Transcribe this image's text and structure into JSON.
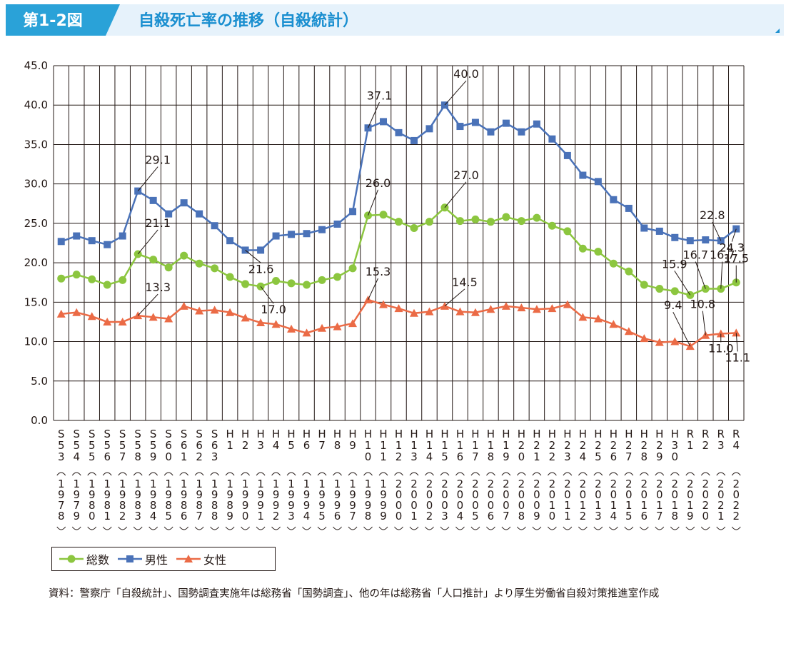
{
  "header": {
    "figure_label": "第1-2図",
    "title": "自殺死亡率の推移（自殺統計）"
  },
  "colors": {
    "total": "#8cc63f",
    "male": "#4a72b8",
    "female": "#eb6b46",
    "header_bg": "#e6f2fb",
    "header_label_bg": "#2aa2d8",
    "header_title": "#1a8fd0",
    "grid": "#231815"
  },
  "chart_data": {
    "type": "line",
    "title": "自殺死亡率の推移（自殺統計）",
    "xlabel": "",
    "ylabel": "",
    "ylim": [
      0,
      45
    ],
    "yticks": [
      "0.0",
      "5.0",
      "10.0",
      "15.0",
      "20.0",
      "25.0",
      "30.0",
      "35.0",
      "40.0",
      "45.0"
    ],
    "grid": true,
    "legend_position": "bottom-left",
    "categories": [
      {
        "era": [
          "S",
          "5",
          "3"
        ],
        "year": "1978"
      },
      {
        "era": [
          "S",
          "5",
          "4"
        ],
        "year": "1979"
      },
      {
        "era": [
          "S",
          "5",
          "5"
        ],
        "year": "1980"
      },
      {
        "era": [
          "S",
          "5",
          "6"
        ],
        "year": "1981"
      },
      {
        "era": [
          "S",
          "5",
          "7"
        ],
        "year": "1982"
      },
      {
        "era": [
          "S",
          "5",
          "8"
        ],
        "year": "1983"
      },
      {
        "era": [
          "S",
          "5",
          "9"
        ],
        "year": "1984"
      },
      {
        "era": [
          "S",
          "6",
          "0"
        ],
        "year": "1985"
      },
      {
        "era": [
          "S",
          "6",
          "1"
        ],
        "year": "1986"
      },
      {
        "era": [
          "S",
          "6",
          "2"
        ],
        "year": "1987"
      },
      {
        "era": [
          "S",
          "6",
          "3"
        ],
        "year": "1988"
      },
      {
        "era": [
          "H",
          "1",
          ""
        ],
        "year": "1989"
      },
      {
        "era": [
          "H",
          "2",
          ""
        ],
        "year": "1990"
      },
      {
        "era": [
          "H",
          "3",
          ""
        ],
        "year": "1991"
      },
      {
        "era": [
          "H",
          "4",
          ""
        ],
        "year": "1992"
      },
      {
        "era": [
          "H",
          "5",
          ""
        ],
        "year": "1993"
      },
      {
        "era": [
          "H",
          "6",
          ""
        ],
        "year": "1994"
      },
      {
        "era": [
          "H",
          "7",
          ""
        ],
        "year": "1995"
      },
      {
        "era": [
          "H",
          "8",
          ""
        ],
        "year": "1996"
      },
      {
        "era": [
          "H",
          "9",
          ""
        ],
        "year": "1997"
      },
      {
        "era": [
          "H",
          "1",
          "0"
        ],
        "year": "1998"
      },
      {
        "era": [
          "H",
          "1",
          "1"
        ],
        "year": "1999"
      },
      {
        "era": [
          "H",
          "1",
          "2"
        ],
        "year": "2000"
      },
      {
        "era": [
          "H",
          "1",
          "3"
        ],
        "year": "2001"
      },
      {
        "era": [
          "H",
          "1",
          "4"
        ],
        "year": "2002"
      },
      {
        "era": [
          "H",
          "1",
          "5"
        ],
        "year": "2003"
      },
      {
        "era": [
          "H",
          "1",
          "6"
        ],
        "year": "2004"
      },
      {
        "era": [
          "H",
          "1",
          "7"
        ],
        "year": "2005"
      },
      {
        "era": [
          "H",
          "1",
          "8"
        ],
        "year": "2006"
      },
      {
        "era": [
          "H",
          "1",
          "9"
        ],
        "year": "2007"
      },
      {
        "era": [
          "H",
          "2",
          "0"
        ],
        "year": "2008"
      },
      {
        "era": [
          "H",
          "2",
          "1"
        ],
        "year": "2009"
      },
      {
        "era": [
          "H",
          "2",
          "2"
        ],
        "year": "2010"
      },
      {
        "era": [
          "H",
          "2",
          "3"
        ],
        "year": "2011"
      },
      {
        "era": [
          "H",
          "2",
          "4"
        ],
        "year": "2012"
      },
      {
        "era": [
          "H",
          "2",
          "5"
        ],
        "year": "2013"
      },
      {
        "era": [
          "H",
          "2",
          "6"
        ],
        "year": "2014"
      },
      {
        "era": [
          "H",
          "2",
          "7"
        ],
        "year": "2015"
      },
      {
        "era": [
          "H",
          "2",
          "8"
        ],
        "year": "2016"
      },
      {
        "era": [
          "H",
          "2",
          "9"
        ],
        "year": "2017"
      },
      {
        "era": [
          "H",
          "3",
          "0"
        ],
        "year": "2018"
      },
      {
        "era": [
          "R",
          "1",
          ""
        ],
        "year": "2019"
      },
      {
        "era": [
          "R",
          "2",
          ""
        ],
        "year": "2020"
      },
      {
        "era": [
          "R",
          "3",
          ""
        ],
        "year": "2021"
      },
      {
        "era": [
          "R",
          "4",
          ""
        ],
        "year": "2022"
      }
    ],
    "series": [
      {
        "key": "total",
        "name": "総数",
        "marker": "circle",
        "values": [
          18.0,
          18.5,
          17.9,
          17.2,
          17.8,
          21.1,
          20.4,
          19.4,
          20.9,
          19.9,
          19.3,
          18.2,
          17.3,
          17.0,
          17.7,
          17.4,
          17.2,
          17.8,
          18.2,
          19.3,
          26.0,
          26.1,
          25.2,
          24.4,
          25.2,
          27.0,
          25.3,
          25.5,
          25.2,
          25.8,
          25.3,
          25.7,
          24.7,
          24.0,
          21.8,
          21.4,
          19.9,
          18.9,
          17.2,
          16.7,
          16.4,
          15.9,
          16.7,
          16.7,
          17.5
        ]
      },
      {
        "key": "male",
        "name": "男性",
        "marker": "square",
        "values": [
          22.7,
          23.4,
          22.8,
          22.3,
          23.4,
          29.1,
          27.9,
          26.2,
          27.6,
          26.2,
          24.7,
          22.8,
          21.6,
          21.6,
          23.4,
          23.6,
          23.7,
          24.2,
          24.9,
          26.5,
          37.1,
          37.9,
          36.5,
          35.5,
          37.0,
          40.0,
          37.3,
          37.8,
          36.6,
          37.7,
          36.6,
          37.6,
          35.7,
          33.6,
          31.1,
          30.3,
          28.0,
          26.9,
          24.4,
          24.0,
          23.2,
          22.8,
          22.9,
          22.8,
          24.3
        ]
      },
      {
        "key": "female",
        "name": "女性",
        "marker": "triangle",
        "values": [
          13.5,
          13.7,
          13.2,
          12.5,
          12.5,
          13.3,
          13.1,
          12.9,
          14.5,
          13.9,
          14.0,
          13.7,
          13.0,
          12.4,
          12.2,
          11.6,
          11.1,
          11.7,
          11.9,
          12.3,
          15.3,
          14.7,
          14.2,
          13.6,
          13.8,
          14.5,
          13.8,
          13.7,
          14.1,
          14.5,
          14.3,
          14.1,
          14.2,
          14.7,
          13.1,
          12.9,
          12.2,
          11.3,
          10.4,
          9.9,
          10.0,
          9.4,
          10.8,
          11.0,
          11.1
        ]
      }
    ],
    "annotations": [
      {
        "text": "29.1",
        "series": "male",
        "index": 5
      },
      {
        "text": "21.1",
        "series": "total",
        "index": 5
      },
      {
        "text": "13.3",
        "series": "female",
        "index": 5
      },
      {
        "text": "21.6",
        "series": "male",
        "index": 12
      },
      {
        "text": "17.0",
        "series": "total",
        "index": 13
      },
      {
        "text": "37.1",
        "series": "male",
        "index": 20
      },
      {
        "text": "26.0",
        "series": "total",
        "index": 20
      },
      {
        "text": "15.3",
        "series": "female",
        "index": 20
      },
      {
        "text": "40.0",
        "series": "male",
        "index": 25
      },
      {
        "text": "27.0",
        "series": "total",
        "index": 25
      },
      {
        "text": "14.5",
        "series": "female",
        "index": 25
      },
      {
        "text": "22.8",
        "series": "male",
        "index": 43
      },
      {
        "text": "24.3",
        "series": "male",
        "index": 44
      },
      {
        "text": "15.9",
        "series": "total",
        "index": 41
      },
      {
        "text": "16.7",
        "series": "total",
        "index": 43
      },
      {
        "text": "16.7",
        "series": "total",
        "index": 42
      },
      {
        "text": "17.5",
        "series": "total",
        "index": 44
      },
      {
        "text": "9.4",
        "series": "female",
        "index": 41
      },
      {
        "text": "11.0",
        "series": "female",
        "index": 43
      },
      {
        "text": "10.8",
        "series": "female",
        "index": 42
      },
      {
        "text": "11.1",
        "series": "female",
        "index": 44
      }
    ]
  },
  "legend": [
    {
      "key": "total",
      "label": "総数"
    },
    {
      "key": "male",
      "label": "男性"
    },
    {
      "key": "female",
      "label": "女性"
    }
  ],
  "source_note": "資料：警察庁「自殺統計」、国勢調査実施年は総務省「国勢調査」、他の年は総務省「人口推計」より厚生労働省自殺対策推進室作成"
}
